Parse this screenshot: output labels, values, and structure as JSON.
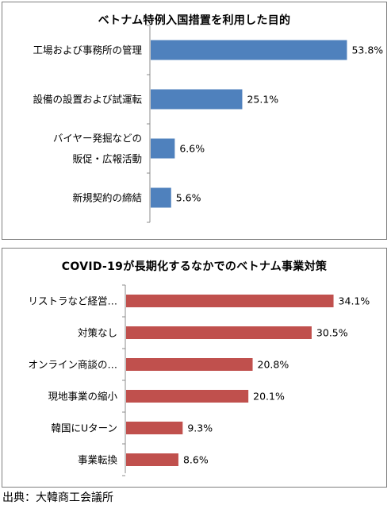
{
  "chart_data": [
    {
      "type": "bar",
      "orientation": "horizontal",
      "title": "ベトナム特例入国措置を利用した目的",
      "categories": [
        [
          "工場および事務所の管理"
        ],
        [
          "設備の設置および試運転"
        ],
        [
          "バイヤー発掘などの",
          "販促・広報活動"
        ],
        [
          "新規契約の締結"
        ]
      ],
      "values": [
        53.8,
        25.1,
        6.6,
        5.6
      ],
      "value_labels": [
        "53.8%",
        "25.1%",
        "6.6%",
        "5.6%"
      ],
      "unit": "%",
      "color": "#4f81bd"
    },
    {
      "type": "bar",
      "orientation": "horizontal",
      "title": "COVID-19が長期化するなかでのベトナム事業対策",
      "categories": [
        [
          "リストラなど経営…"
        ],
        [
          "対策なし"
        ],
        [
          "オンライン商談の…"
        ],
        [
          "現地事業の縮小"
        ],
        [
          "韓国にUターン"
        ],
        [
          "事業転換"
        ]
      ],
      "values": [
        34.1,
        30.5,
        20.8,
        20.1,
        9.3,
        8.6
      ],
      "value_labels": [
        "34.1%",
        "30.5%",
        "20.8%",
        "20.1%",
        "9.3%",
        "8.6%"
      ],
      "unit": "%",
      "color": "#c0504d"
    }
  ],
  "source": "出典：大韓商工会議所"
}
